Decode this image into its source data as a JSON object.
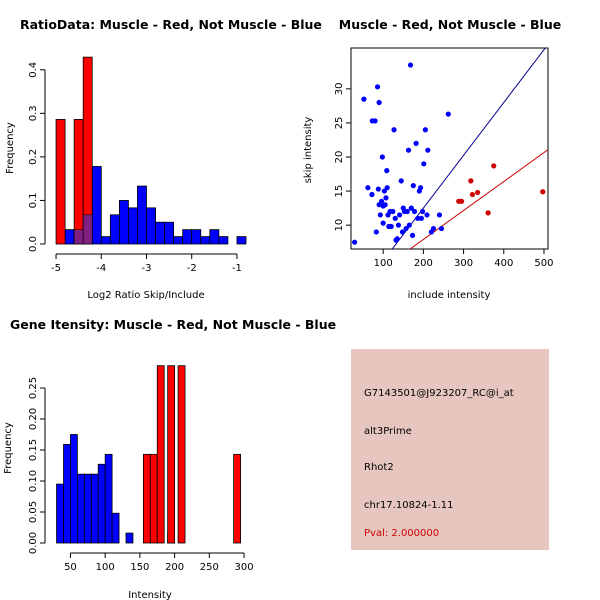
{
  "colors": {
    "red": "#ff0000",
    "blue": "#0000ff",
    "overlap": "#7f1f7f",
    "dark_red": "#cc0000",
    "dark_blue": "#00008b",
    "info_bg": "#e6c6bf"
  },
  "chart_data": [
    {
      "id": "ratio",
      "type": "bar",
      "title": "RatioData: Muscle - Red, Not Muscle - Blue",
      "xlabel": "Log2 Ratio Skip/Include",
      "ylabel": "Frequency",
      "xlim": [
        -5.2,
        -0.8
      ],
      "ylim": [
        0,
        0.45
      ],
      "xticks": [
        -5,
        -4,
        -3,
        -2,
        -1
      ],
      "xtick_labels": [
        "-5",
        "-4",
        "-3",
        "-2",
        "-1"
      ],
      "yticks": [
        0.0,
        0.1,
        0.2,
        0.3,
        0.4
      ],
      "ytick_labels": [
        "0.0",
        "0.1",
        "0.2",
        "0.3",
        "0.4"
      ],
      "series": [
        {
          "name": "Not Muscle",
          "color": "blue",
          "bins": [
            [
              -4.8,
              -4.6,
              0.033
            ],
            [
              -4.6,
              -4.4,
              0.033
            ],
            [
              -4.4,
              -4.2,
              0.067
            ],
            [
              -4.2,
              -4.0,
              0.178
            ],
            [
              -4.0,
              -3.8,
              0.017
            ],
            [
              -3.8,
              -3.6,
              0.067
            ],
            [
              -3.6,
              -3.4,
              0.1
            ],
            [
              -3.4,
              -3.2,
              0.083
            ],
            [
              -3.2,
              -3.0,
              0.133
            ],
            [
              -3.0,
              -2.8,
              0.083
            ],
            [
              -2.8,
              -2.6,
              0.05
            ],
            [
              -2.6,
              -2.4,
              0.05
            ],
            [
              -2.4,
              -2.2,
              0.017
            ],
            [
              -2.2,
              -2.0,
              0.033
            ],
            [
              -2.0,
              -1.8,
              0.033
            ],
            [
              -1.8,
              -1.6,
              0.017
            ],
            [
              -1.6,
              -1.4,
              0.033
            ],
            [
              -1.4,
              -1.2,
              0.017
            ],
            [
              -1.0,
              -0.8,
              0.017
            ]
          ]
        },
        {
          "name": "Muscle",
          "color": "red",
          "bins": [
            [
              -5.0,
              -4.8,
              0.286
            ],
            [
              -4.6,
              -4.4,
              0.286
            ],
            [
              -4.4,
              -4.2,
              0.429
            ]
          ]
        }
      ],
      "overlap_bins": [
        [
          -4.6,
          -4.4,
          0.033
        ],
        [
          -4.4,
          -4.2,
          0.067
        ]
      ]
    },
    {
      "id": "scatter",
      "type": "scatter",
      "title": "Muscle - Red, Not Muscle - Blue",
      "xlabel": "include intensity",
      "ylabel": "skip intensity",
      "xlim": [
        20,
        510
      ],
      "ylim": [
        6.5,
        36
      ],
      "xticks": [
        100,
        200,
        300,
        400,
        500
      ],
      "xtick_labels": [
        "100",
        "200",
        "300",
        "400",
        "500"
      ],
      "yticks": [
        10,
        15,
        20,
        25,
        30
      ],
      "ytick_labels": [
        "10",
        "15",
        "20",
        "25",
        "30"
      ],
      "blue_points": [
        [
          29,
          7.5
        ],
        [
          52,
          28.5
        ],
        [
          62,
          15.5
        ],
        [
          72,
          14.5
        ],
        [
          73,
          25.3
        ],
        [
          80,
          25.3
        ],
        [
          83,
          9
        ],
        [
          86,
          30.3
        ],
        [
          88,
          15.3
        ],
        [
          90,
          13
        ],
        [
          90,
          28
        ],
        [
          93,
          11.5
        ],
        [
          96,
          13.5
        ],
        [
          98,
          20
        ],
        [
          100,
          12.8
        ],
        [
          100,
          10.3
        ],
        [
          103,
          15
        ],
        [
          105,
          13
        ],
        [
          107,
          14
        ],
        [
          109,
          18
        ],
        [
          110,
          15.5
        ],
        [
          112,
          11.5
        ],
        [
          114,
          9.8
        ],
        [
          117,
          12
        ],
        [
          120,
          9.8
        ],
        [
          124,
          12
        ],
        [
          127,
          24
        ],
        [
          130,
          11
        ],
        [
          132,
          7.8
        ],
        [
          135,
          8
        ],
        [
          138,
          10
        ],
        [
          141,
          11.5
        ],
        [
          145,
          16.5
        ],
        [
          148,
          9
        ],
        [
          150,
          12.5
        ],
        [
          153,
          12
        ],
        [
          157,
          9.5
        ],
        [
          160,
          12
        ],
        [
          163,
          21
        ],
        [
          165,
          10
        ],
        [
          168,
          33.5
        ],
        [
          170,
          12.5
        ],
        [
          173,
          8.5
        ],
        [
          175,
          15.8
        ],
        [
          178,
          12
        ],
        [
          182,
          22
        ],
        [
          186,
          11
        ],
        [
          190,
          15
        ],
        [
          193,
          15.5
        ],
        [
          195,
          11
        ],
        [
          198,
          12
        ],
        [
          201,
          19
        ],
        [
          205,
          24
        ],
        [
          209,
          11.5
        ],
        [
          211,
          21
        ],
        [
          220,
          9
        ],
        [
          225,
          9.5
        ],
        [
          240,
          11.5
        ],
        [
          245,
          9.5
        ],
        [
          262,
          26.3
        ]
      ],
      "red_points": [
        [
          288,
          13.5
        ],
        [
          295,
          13.5
        ],
        [
          318,
          16.5
        ],
        [
          322,
          14.5
        ],
        [
          335,
          14.8
        ],
        [
          361,
          11.8
        ],
        [
          375,
          18.7
        ],
        [
          497,
          14.9
        ]
      ],
      "lines": [
        {
          "color": "dark_blue",
          "a": -3.0,
          "b": 0.0775
        },
        {
          "color": "dark_red",
          "a": -0.6,
          "b": 0.0425
        }
      ]
    },
    {
      "id": "intensity",
      "type": "bar",
      "title": "Gene Itensity: Muscle - Red, Not Muscle - Blue",
      "xlabel": "Intensity",
      "ylabel": "Frequency",
      "xlim": [
        22,
        310
      ],
      "ylim": [
        0,
        0.3
      ],
      "xticks": [
        50,
        100,
        150,
        200,
        250,
        300
      ],
      "xtick_labels": [
        "50",
        "100",
        "150",
        "200",
        "250",
        "300"
      ],
      "yticks": [
        0.0,
        0.05,
        0.1,
        0.15,
        0.2,
        0.25
      ],
      "ytick_labels": [
        "0.00",
        "0.05",
        "0.10",
        "0.15",
        "0.20",
        "0.25"
      ],
      "series": [
        {
          "name": "Not Muscle",
          "color": "blue",
          "bins": [
            [
              30,
              40,
              0.095
            ],
            [
              40,
              50,
              0.159
            ],
            [
              50,
              60,
              0.175
            ],
            [
              60,
              70,
              0.111
            ],
            [
              70,
              80,
              0.111
            ],
            [
              80,
              90,
              0.111
            ],
            [
              90,
              100,
              0.127
            ],
            [
              100,
              110,
              0.143
            ],
            [
              110,
              120,
              0.048
            ],
            [
              130,
              140,
              0.016
            ],
            [
              190,
              200,
              0.016
            ]
          ]
        },
        {
          "name": "Muscle",
          "color": "red",
          "bins": [
            [
              155,
              165,
              0.143
            ],
            [
              165,
              175,
              0.143
            ],
            [
              175,
              185,
              0.286
            ],
            [
              190,
              200,
              0.286
            ],
            [
              200,
              210,
              0.0
            ],
            [
              205,
              215,
              0.286
            ],
            [
              285,
              295,
              0.143
            ]
          ]
        }
      ]
    }
  ],
  "info_panel": {
    "probe_id": "G7143501@J923207_RC@i_at",
    "event_type": "alt3Prime",
    "gene": "Rhot2",
    "location": "chr17.10824-1.11",
    "pval": "Pval: 2.000000"
  }
}
